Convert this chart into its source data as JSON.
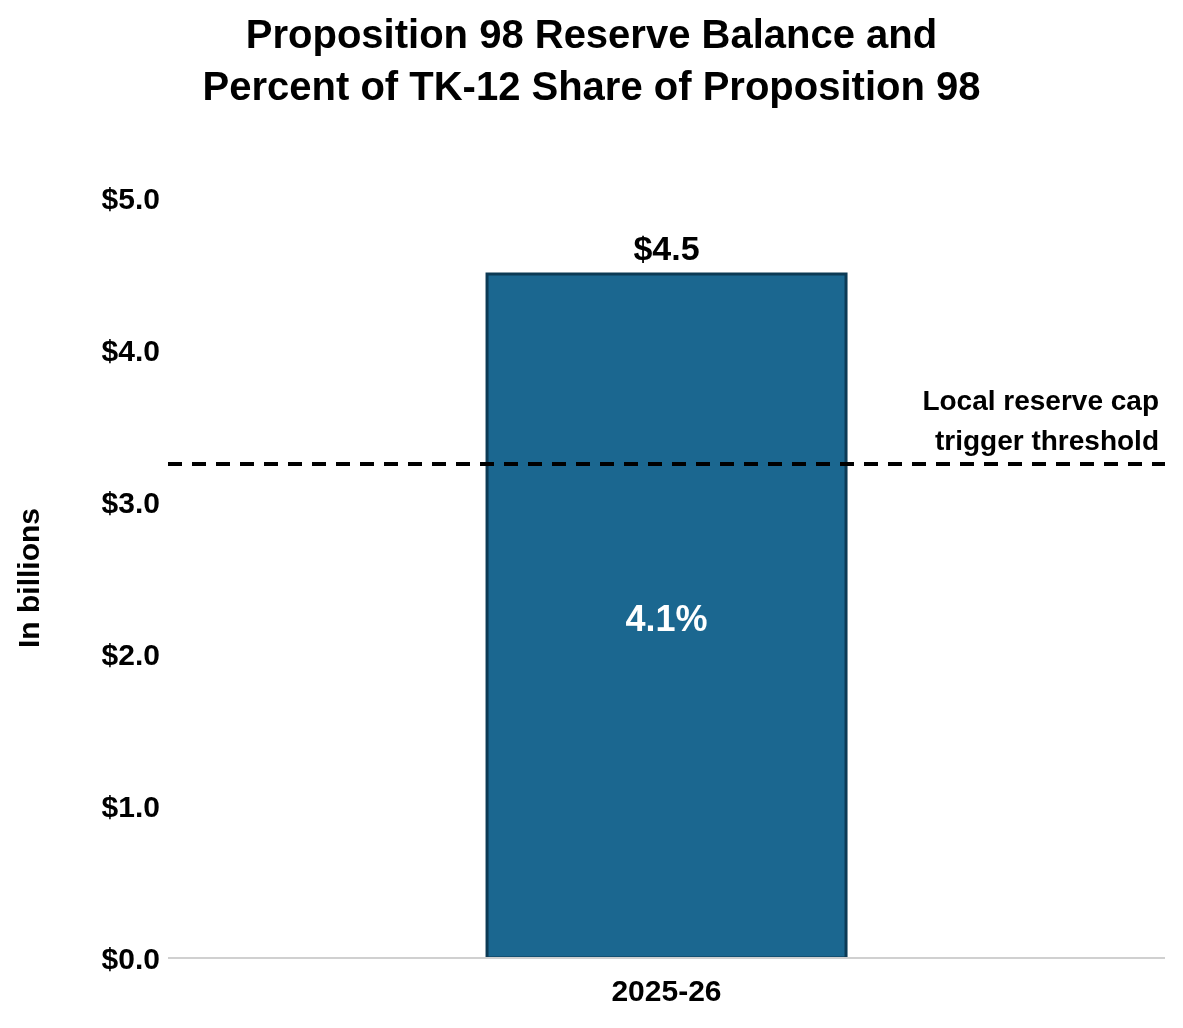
{
  "chart_data": {
    "type": "bar",
    "title": "Proposition 98 Reserve Balance and\nPercent of TK-12 Share of Proposition 98",
    "ylabel": "In billions",
    "categories": [
      "2025-26"
    ],
    "values": [
      4.5
    ],
    "value_labels": [
      "$4.5"
    ],
    "color": "#1b6790",
    "ylim": [
      0,
      5
    ],
    "yticks": [
      {
        "value": 0,
        "label": "$0.0"
      },
      {
        "value": 1,
        "label": "$1.0"
      },
      {
        "value": 2,
        "label": "$2.0"
      },
      {
        "value": 3,
        "label": "$3.0"
      },
      {
        "value": 4,
        "label": "$4.0"
      },
      {
        "value": 5,
        "label": "$5.0"
      }
    ],
    "ref_lines": [
      {
        "axis": "y",
        "value": 3.25,
        "label": "Local reserve cap trigger threshold",
        "color": "#000000",
        "line_style": "dashed"
      }
    ],
    "annotations": [
      "4.1%"
    ],
    "grid": false,
    "legend": false
  }
}
